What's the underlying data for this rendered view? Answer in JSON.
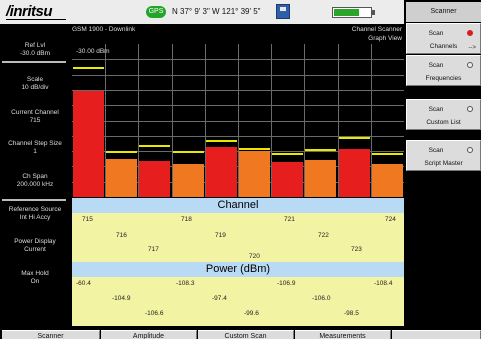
{
  "header": {
    "brand": "/inritsu",
    "gps_badge": "GPS",
    "gps_coords": "N 37° 9' 3\" W 121° 39' 5\"",
    "mode": "GSM 1900 - Downlink",
    "app_title": "Channel Scanner",
    "view_title": "Graph View",
    "battery_level": 0.7
  },
  "params": [
    {
      "label": "Ref Lvl",
      "value": "-30.0 dBm"
    },
    {
      "label": "Scale",
      "value": "10 dB/div"
    },
    {
      "label": "Current Channel",
      "value": "715"
    },
    {
      "label": "Channel Step Size",
      "value": "1"
    },
    {
      "label": "Ch Span",
      "value": "200.000 kHz"
    },
    {
      "label": "Reference Source",
      "value": "Int Hi Accy"
    },
    {
      "label": "Power Display",
      "value": "Current"
    },
    {
      "label": "Max Hold",
      "value": "On"
    }
  ],
  "graph": {
    "ref_label": "-30.00 dBm",
    "ref_dbm": -30,
    "scale_db_per_div": 10,
    "divisions": 10
  },
  "chart_data": {
    "type": "bar",
    "categories": [
      "715",
      "716",
      "717",
      "718",
      "719",
      "720",
      "721",
      "722",
      "723",
      "724"
    ],
    "series": [
      {
        "values": [
          -60.4,
          -104.9,
          -106.6,
          -108.3,
          -97.4,
          -99.6,
          -106.9,
          -106.0,
          -98.5,
          -108.4
        ]
      }
    ],
    "max_hold": [
      -45,
      -99.8,
      -96,
      -100,
      -93,
      -98,
      -101,
      -98.5,
      -91,
      -101
    ],
    "ylim": [
      -130,
      -30
    ],
    "bar_colors": {
      "current": "#e61e1e",
      "other": "#f07820"
    },
    "max_hold_color": "#e8e800"
  },
  "channel_table": {
    "title": "Channel",
    "values": [
      "715",
      "716",
      "717",
      "718",
      "719",
      "720",
      "721",
      "722",
      "723",
      "724"
    ]
  },
  "power_table": {
    "title": "Power (dBm)",
    "values": [
      "-60.4",
      "-104.9",
      "-106.6",
      "-108.3",
      "-97.4",
      "-99.6",
      "-106.9",
      "-106.0",
      "-98.5",
      "-108.4"
    ]
  },
  "softkeys": {
    "title": "Scanner",
    "keys": [
      {
        "line1": "Scan",
        "line2": "Channels",
        "selected": true,
        "more": "-->"
      },
      {
        "line1": "Scan",
        "line2": "Frequencies",
        "selected": false
      },
      {
        "line1": "Scan",
        "line2": "Custom List",
        "selected": false
      },
      {
        "line1": "Scan",
        "line2": "Script Master",
        "selected": false
      }
    ]
  },
  "bottom_menu": [
    "Scanner",
    "Amplitude",
    "Custom Scan",
    "Measurements",
    ""
  ]
}
